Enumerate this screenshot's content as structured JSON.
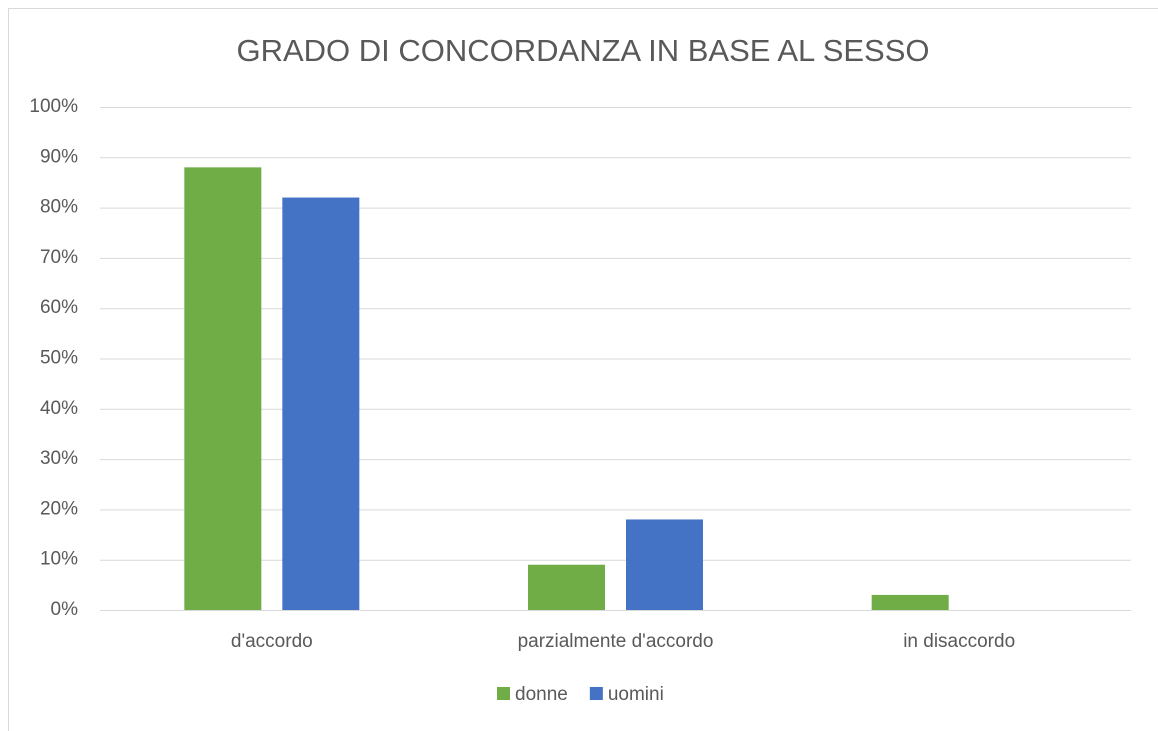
{
  "chart_data": {
    "type": "bar",
    "title": "GRADO DI CONCORDANZA IN BASE AL SESSO",
    "categories": [
      "d'accordo",
      "parzialmente d'accordo",
      "in disaccordo"
    ],
    "series": [
      {
        "name": "donne",
        "color": "#70ad47",
        "values": [
          88,
          9,
          3
        ]
      },
      {
        "name": "uomini",
        "color": "#4472c4",
        "values": [
          82,
          18,
          0
        ]
      }
    ],
    "ylim": [
      0,
      100
    ],
    "yticks": [
      {
        "value": 0,
        "label": "0%"
      },
      {
        "value": 10,
        "label": "10%"
      },
      {
        "value": 20,
        "label": "20%"
      },
      {
        "value": 30,
        "label": "30%"
      },
      {
        "value": 40,
        "label": "40%"
      },
      {
        "value": 50,
        "label": "50%"
      },
      {
        "value": 60,
        "label": "60%"
      },
      {
        "value": 70,
        "label": "70%"
      },
      {
        "value": 80,
        "label": "80%"
      },
      {
        "value": 90,
        "label": "90%"
      },
      {
        "value": 100,
        "label": "100%"
      }
    ],
    "grid": true,
    "legend": "bottom"
  }
}
